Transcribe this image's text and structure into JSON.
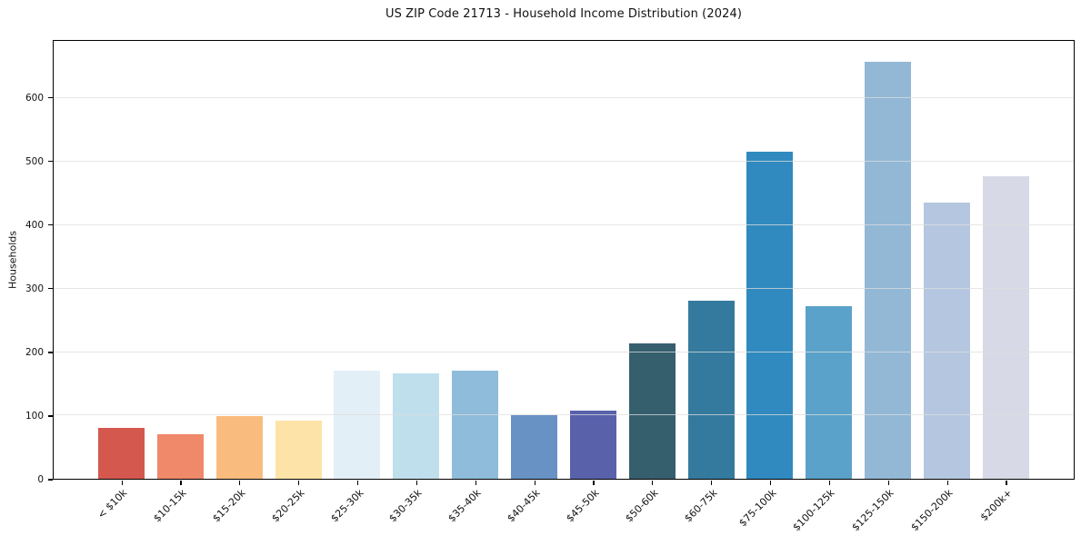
{
  "title": "US ZIP Code 21713 - Household Income Distribution (2024)",
  "chart_data": {
    "type": "bar",
    "title": "US ZIP Code 21713 - Household Income Distribution (2024)",
    "xlabel": "",
    "ylabel": "Households",
    "categories": [
      "< $10k",
      "$10-15k",
      "$15-20k",
      "$20-25k",
      "$25-30k",
      "$30-35k",
      "$35-40k",
      "$40-45k",
      "$45-50k",
      "$50-60k",
      "$60-75k",
      "$75-100k",
      "$100-125k",
      "$125-150k",
      "$150-200k",
      "$200k+"
    ],
    "values": [
      81,
      70,
      99,
      92,
      170,
      167,
      170,
      100,
      107,
      214,
      281,
      516,
      273,
      658,
      436,
      477
    ],
    "bar_colors": [
      "#d4584e",
      "#f0886a",
      "#fabc7e",
      "#fde3a7",
      "#e3eff6",
      "#bfdfec",
      "#8fbcda",
      "#6892c4",
      "#5961ab",
      "#365f6e",
      "#347a9e",
      "#308abf",
      "#5aa2c9",
      "#92b8d6",
      "#b5c7e0",
      "#d7d9e6"
    ],
    "ylim": [
      0,
      691
    ],
    "yticks": [
      0,
      100,
      200,
      300,
      400,
      500,
      600
    ],
    "grid": "horizontal",
    "legend": "none",
    "background_color": "#ffffff",
    "axis_color": "#000000",
    "gridline_color": "#dddddd"
  }
}
